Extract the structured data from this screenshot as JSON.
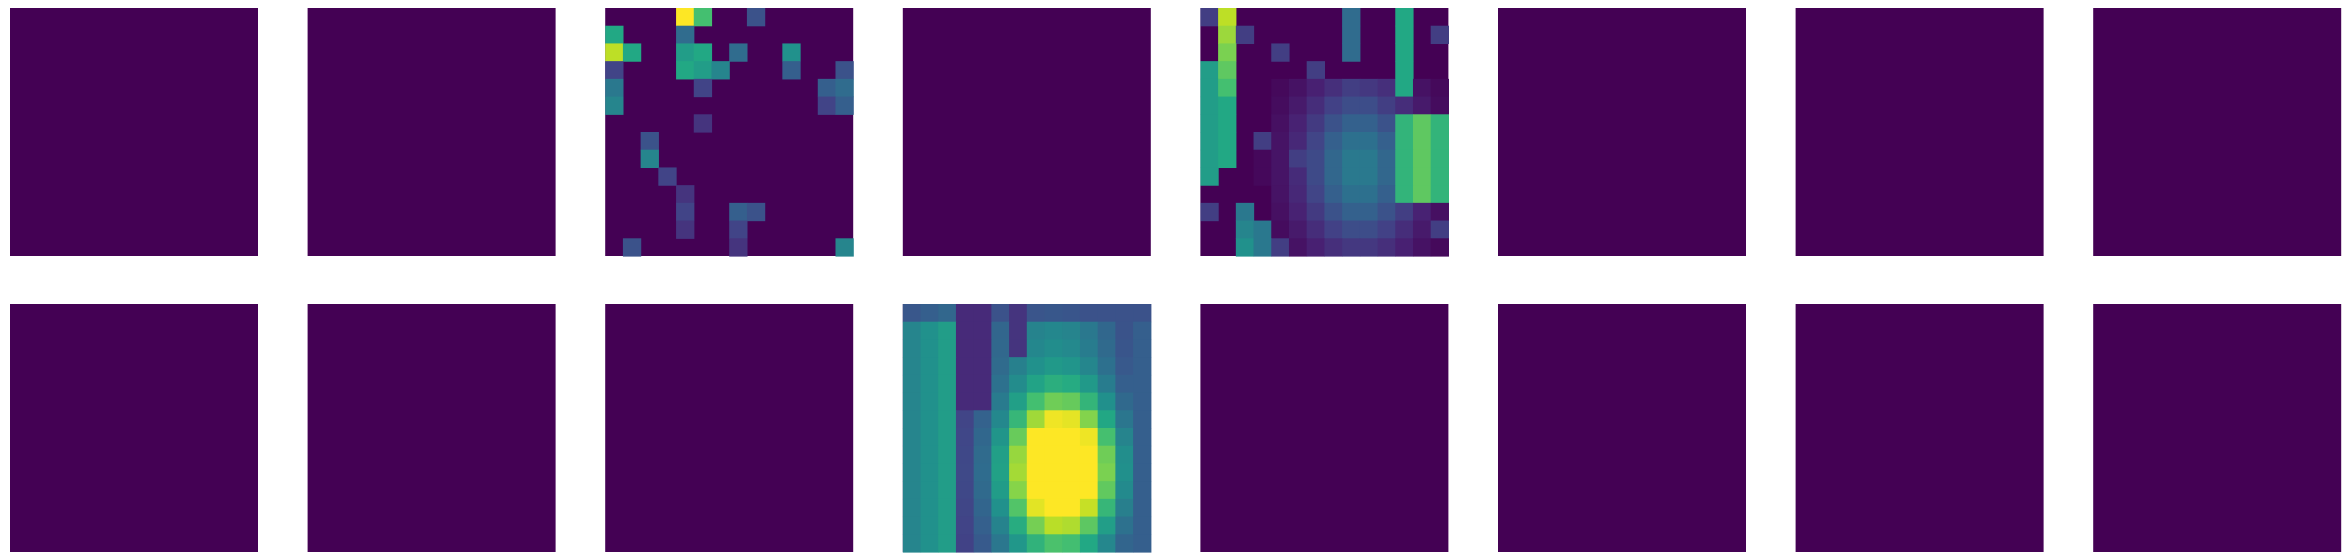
{
  "chart_data": {
    "type": "heatmap",
    "colormap": "viridis",
    "grid_rows": 2,
    "grid_cols": 8,
    "axes_visible": false,
    "panels": [
      {
        "index": 0,
        "row": 0,
        "col": 0,
        "pattern": "zero"
      },
      {
        "index": 1,
        "row": 0,
        "col": 1,
        "pattern": "zero"
      },
      {
        "index": 2,
        "row": 0,
        "col": 2,
        "pattern": "sparse-activations",
        "resolution": 14,
        "cells": [
          {
            "r": 0,
            "c": 4,
            "v": 1.0
          },
          {
            "r": 0,
            "c": 5,
            "v": 0.7
          },
          {
            "r": 0,
            "c": 8,
            "v": 0.25
          },
          {
            "r": 1,
            "c": 0,
            "v": 0.6
          },
          {
            "r": 1,
            "c": 4,
            "v": 0.35
          },
          {
            "r": 2,
            "c": 0,
            "v": 0.9
          },
          {
            "r": 2,
            "c": 1,
            "v": 0.6
          },
          {
            "r": 2,
            "c": 4,
            "v": 0.55
          },
          {
            "r": 2,
            "c": 5,
            "v": 0.6
          },
          {
            "r": 2,
            "c": 7,
            "v": 0.35
          },
          {
            "r": 2,
            "c": 10,
            "v": 0.5
          },
          {
            "r": 3,
            "c": 0,
            "v": 0.2
          },
          {
            "r": 3,
            "c": 4,
            "v": 0.6
          },
          {
            "r": 3,
            "c": 5,
            "v": 0.55
          },
          {
            "r": 3,
            "c": 6,
            "v": 0.45
          },
          {
            "r": 3,
            "c": 10,
            "v": 0.3
          },
          {
            "r": 3,
            "c": 13,
            "v": 0.25
          },
          {
            "r": 4,
            "c": 0,
            "v": 0.4
          },
          {
            "r": 4,
            "c": 5,
            "v": 0.2
          },
          {
            "r": 4,
            "c": 12,
            "v": 0.3
          },
          {
            "r": 4,
            "c": 13,
            "v": 0.35
          },
          {
            "r": 5,
            "c": 0,
            "v": 0.45
          },
          {
            "r": 5,
            "c": 12,
            "v": 0.2
          },
          {
            "r": 5,
            "c": 13,
            "v": 0.3
          },
          {
            "r": 6,
            "c": 5,
            "v": 0.15
          },
          {
            "r": 7,
            "c": 2,
            "v": 0.25
          },
          {
            "r": 8,
            "c": 2,
            "v": 0.45
          },
          {
            "r": 9,
            "c": 3,
            "v": 0.2
          },
          {
            "r": 10,
            "c": 4,
            "v": 0.15
          },
          {
            "r": 11,
            "c": 4,
            "v": 0.2
          },
          {
            "r": 11,
            "c": 7,
            "v": 0.3
          },
          {
            "r": 11,
            "c": 8,
            "v": 0.25
          },
          {
            "r": 12,
            "c": 4,
            "v": 0.15
          },
          {
            "r": 12,
            "c": 7,
            "v": 0.2
          },
          {
            "r": 13,
            "c": 1,
            "v": 0.25
          },
          {
            "r": 13,
            "c": 7,
            "v": 0.15
          },
          {
            "r": 13,
            "c": 13,
            "v": 0.45
          }
        ]
      },
      {
        "index": 3,
        "row": 0,
        "col": 3,
        "pattern": "zero"
      },
      {
        "index": 4,
        "row": 0,
        "col": 4,
        "pattern": "streaks",
        "resolution": 14
      },
      {
        "index": 5,
        "row": 0,
        "col": 5,
        "pattern": "zero"
      },
      {
        "index": 6,
        "row": 0,
        "col": 6,
        "pattern": "zero"
      },
      {
        "index": 7,
        "row": 0,
        "col": 7,
        "pattern": "zero"
      },
      {
        "index": 8,
        "row": 1,
        "col": 0,
        "pattern": "zero"
      },
      {
        "index": 9,
        "row": 1,
        "col": 1,
        "pattern": "zero"
      },
      {
        "index": 10,
        "row": 1,
        "col": 2,
        "pattern": "zero"
      },
      {
        "index": 11,
        "row": 1,
        "col": 3,
        "pattern": "blob",
        "resolution": 14
      },
      {
        "index": 12,
        "row": 1,
        "col": 4,
        "pattern": "zero"
      },
      {
        "index": 13,
        "row": 1,
        "col": 5,
        "pattern": "zero"
      },
      {
        "index": 14,
        "row": 1,
        "col": 6,
        "pattern": "zero"
      },
      {
        "index": 15,
        "row": 1,
        "col": 7,
        "pattern": "zero"
      }
    ]
  }
}
